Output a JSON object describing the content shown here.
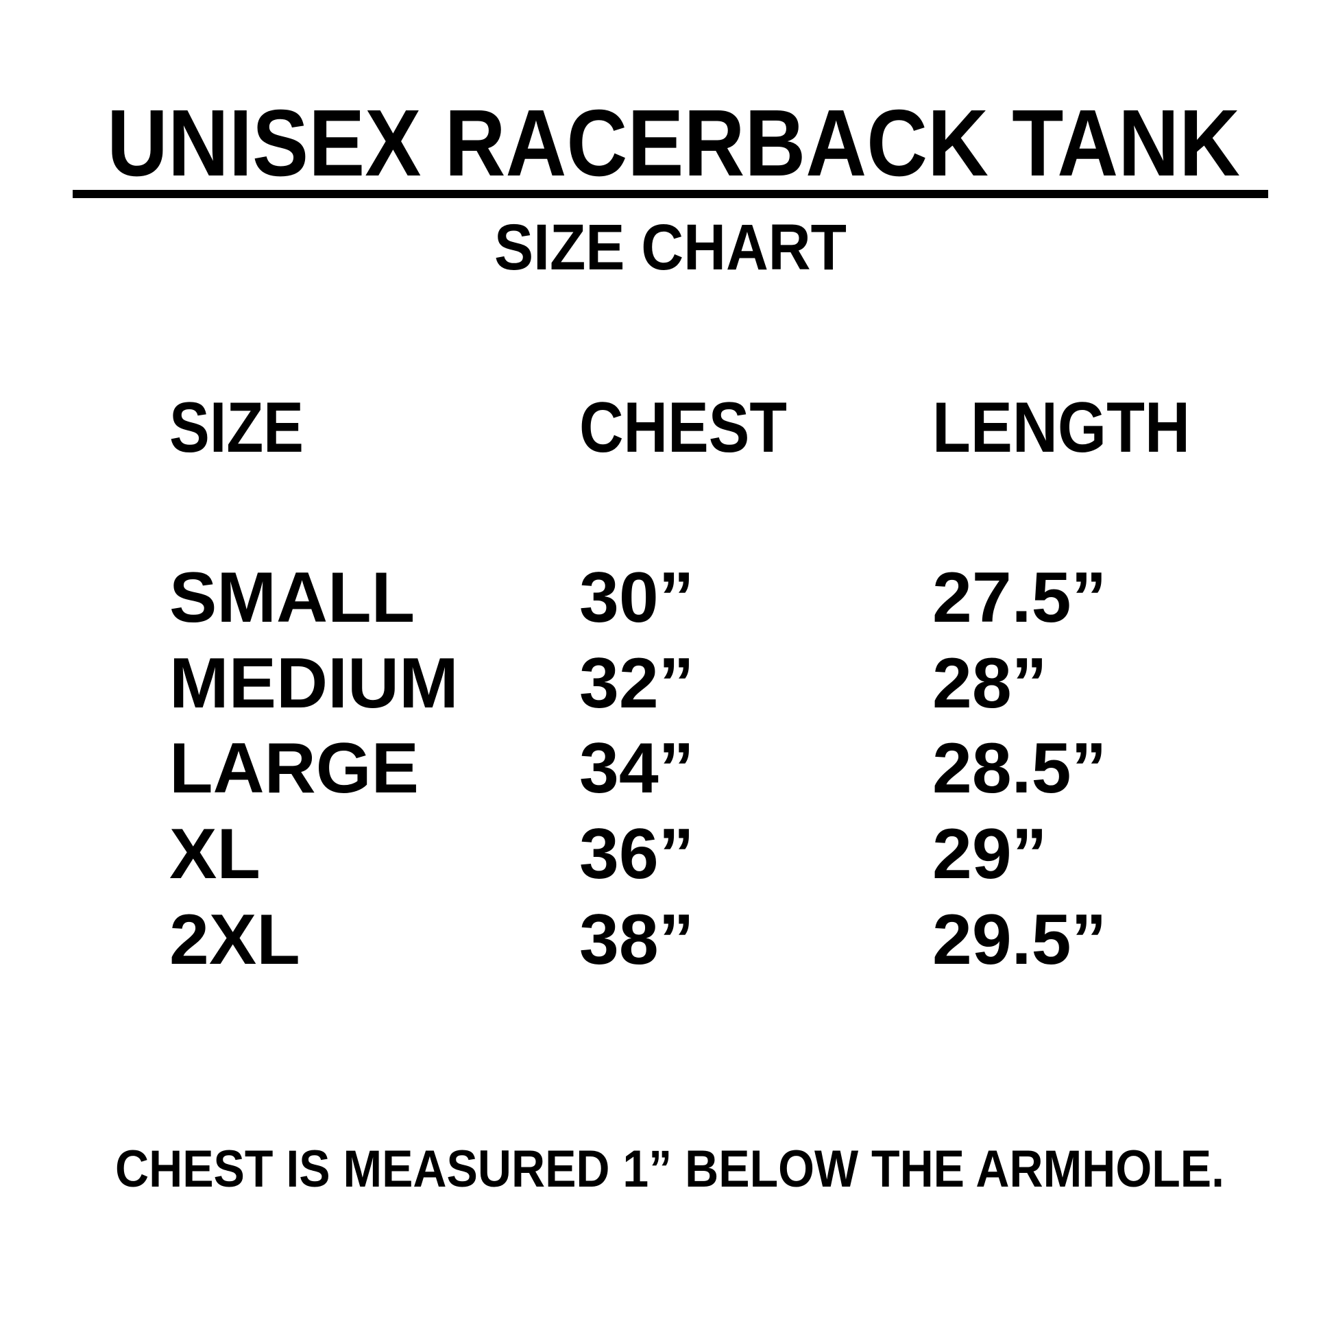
{
  "title": "UNISEX RACERBACK TANK",
  "subtitle": "SIZE CHART",
  "table": {
    "headers": [
      "SIZE",
      "CHEST",
      "LENGTH"
    ],
    "rows": [
      [
        "SMALL",
        "30”",
        "27.5”"
      ],
      [
        "MEDIUM",
        "32”",
        "28”"
      ],
      [
        "LARGE",
        "34”",
        "28.5”"
      ],
      [
        "XL",
        "36”",
        "29”"
      ],
      [
        "2XL",
        "38”",
        "29.5”"
      ]
    ]
  },
  "footnote": "CHEST IS MEASURED 1” BELOW THE ARMHOLE.",
  "colors": {
    "text": "#000000",
    "background": "#ffffff"
  }
}
